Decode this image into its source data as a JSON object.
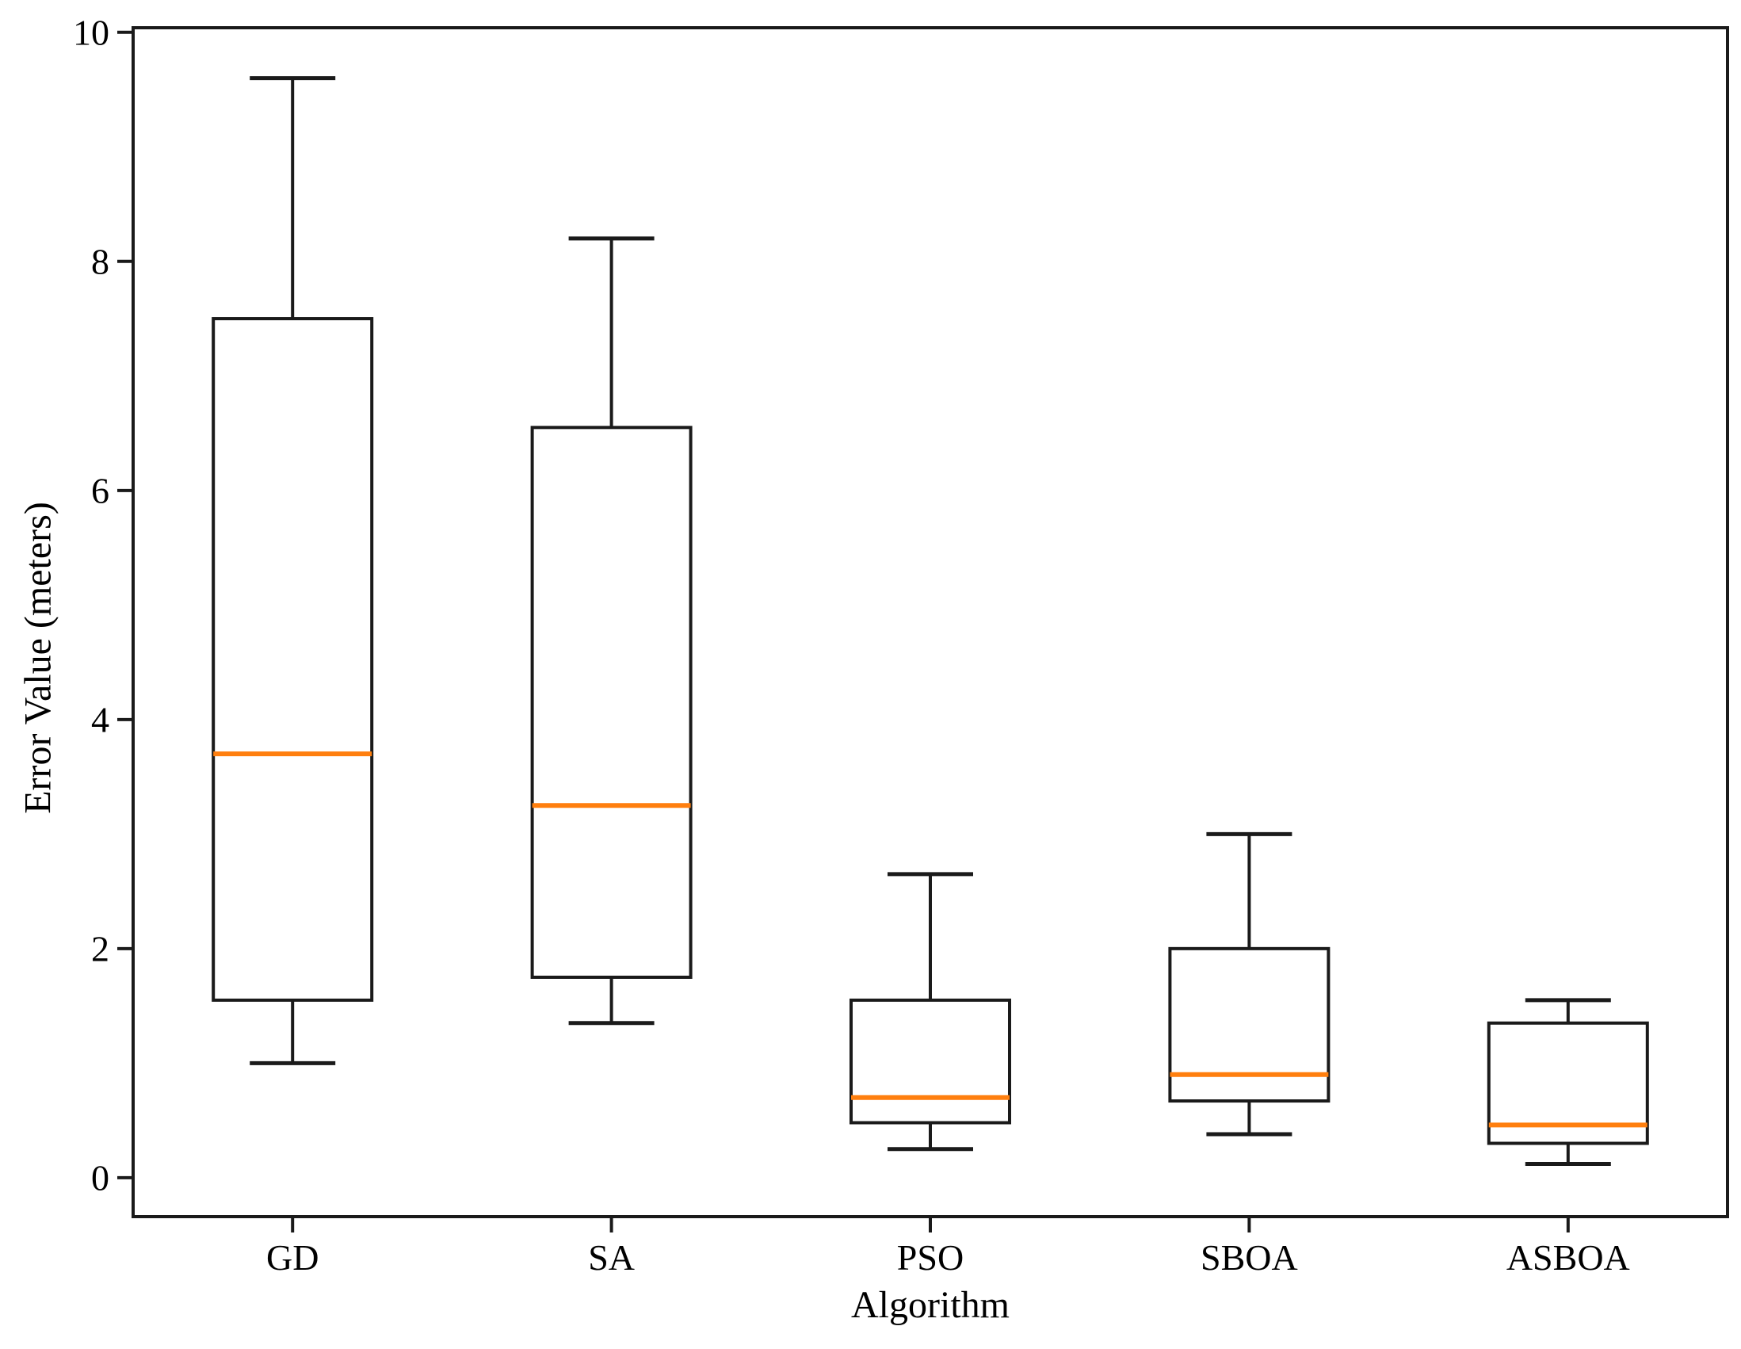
{
  "figure": {
    "background": "#ffffff",
    "line_color": "#1a1a1a",
    "median_color": "#ff7f0e",
    "box_fill": "#ffffff",
    "text_color": "#000000"
  },
  "chart_data": {
    "type": "boxplot",
    "title": "",
    "xlabel": "Algorithm",
    "ylabel": "Error Value (meters)",
    "categories": [
      "GD",
      "SA",
      "PSO",
      "SBOA",
      "ASBOA"
    ],
    "yticks": [
      "0",
      "2",
      "4",
      "6",
      "8",
      "10"
    ],
    "ytick_values": [
      0,
      2,
      4,
      6,
      8,
      10
    ],
    "ylim": [
      -0.34,
      10.04
    ],
    "grid": false,
    "legend": false,
    "series": [
      {
        "name": "GD",
        "whisker_low": 1.0,
        "q1": 1.55,
        "median": 3.7,
        "q3": 7.5,
        "whisker_high": 9.6
      },
      {
        "name": "SA",
        "whisker_low": 1.35,
        "q1": 1.75,
        "median": 3.25,
        "q3": 6.55,
        "whisker_high": 8.2
      },
      {
        "name": "PSO",
        "whisker_low": 0.25,
        "q1": 0.48,
        "median": 0.7,
        "q3": 1.55,
        "whisker_high": 2.65
      },
      {
        "name": "SBOA",
        "whisker_low": 0.38,
        "q1": 0.67,
        "median": 0.9,
        "q3": 2.0,
        "whisker_high": 3.0
      },
      {
        "name": "ASBOA",
        "whisker_low": 0.12,
        "q1": 0.3,
        "median": 0.46,
        "q3": 1.35,
        "whisker_high": 1.55
      }
    ]
  }
}
